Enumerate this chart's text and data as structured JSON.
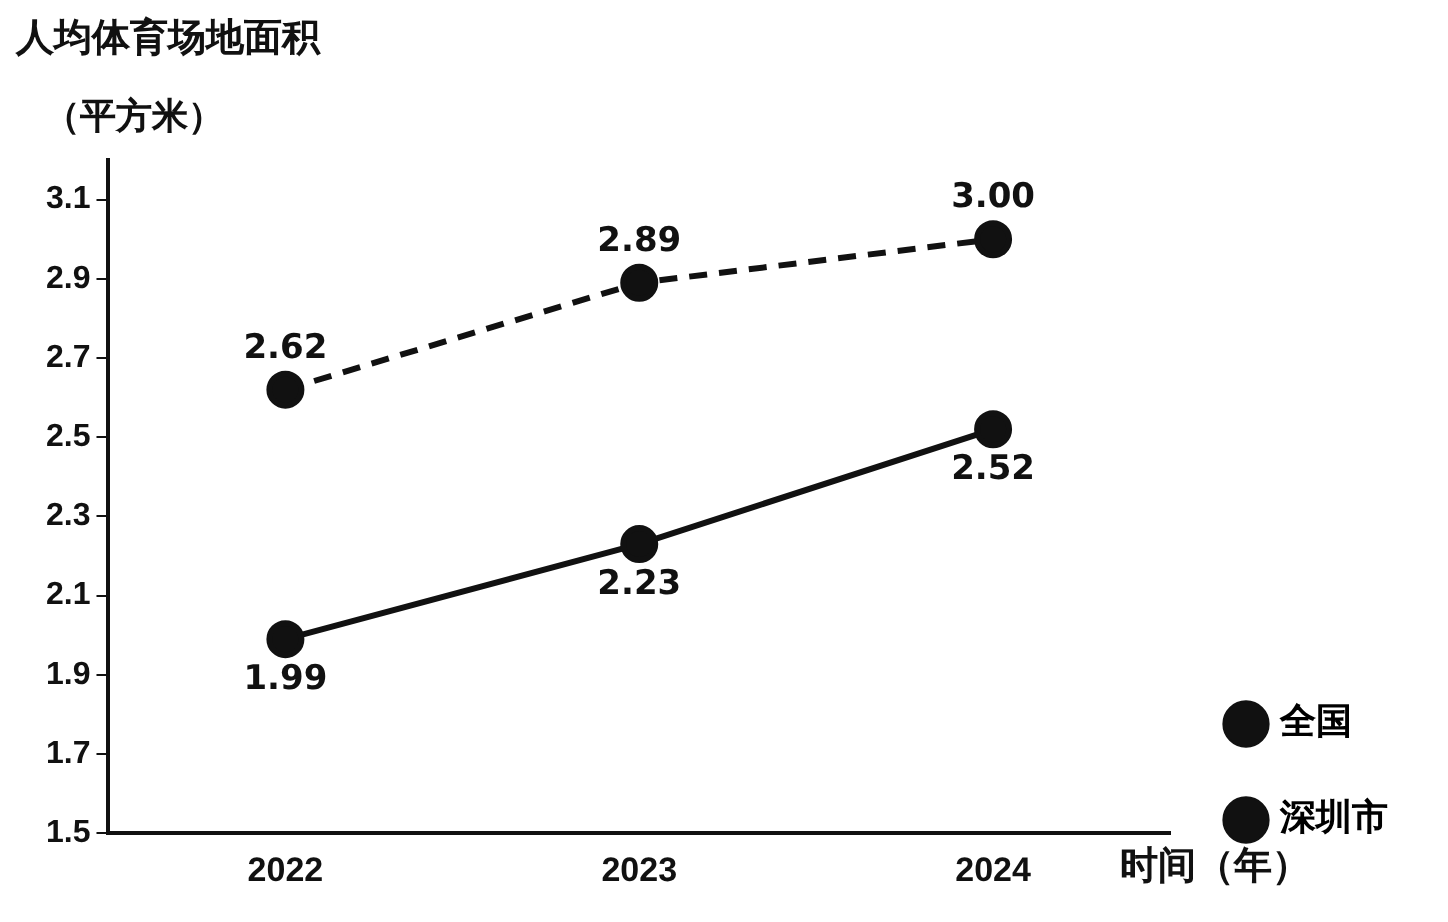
{
  "chart_data": {
    "type": "line",
    "title": "人均体育场地面积",
    "ylabel": "（平方米）",
    "xlabel": "时间（年）",
    "categories": [
      "2022",
      "2023",
      "2024"
    ],
    "series": [
      {
        "name": "全国",
        "color": "#111111",
        "values": [
          2.62,
          2.89,
          3.0
        ],
        "line_style": "dashed",
        "value_labels": [
          "2.62",
          "2.89",
          "3.00"
        ]
      },
      {
        "name": "深圳市",
        "color": "#111111",
        "values": [
          1.99,
          2.23,
          2.52
        ],
        "line_style": "solid",
        "value_labels": [
          "1.99",
          "2.23",
          "2.52"
        ]
      }
    ],
    "ylim": [
      1.5,
      3.2
    ],
    "yticks": [
      1.5,
      1.7,
      1.9,
      2.1,
      2.3,
      2.5,
      2.7,
      2.9,
      3.1
    ],
    "grid": false,
    "legend": "right",
    "marker": "circle"
  }
}
